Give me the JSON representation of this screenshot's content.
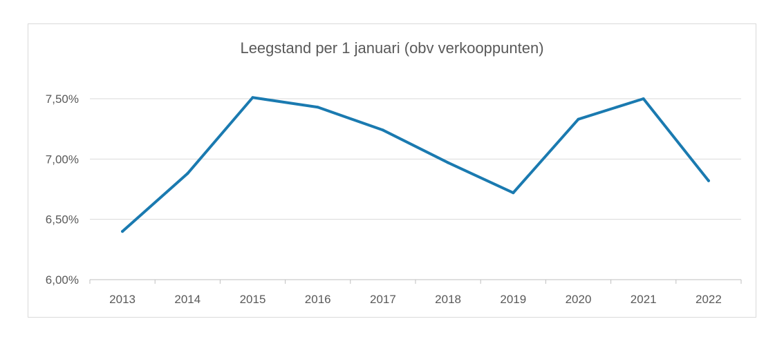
{
  "chart_data": {
    "type": "line",
    "title": "Leegstand per 1 januari (obv verkooppunten)",
    "xlabel": "",
    "ylabel": "",
    "categories": [
      "2013",
      "2014",
      "2015",
      "2016",
      "2017",
      "2018",
      "2019",
      "2020",
      "2021",
      "2022"
    ],
    "series": [
      {
        "values": [
          6.4,
          6.88,
          7.51,
          7.43,
          7.24,
          6.97,
          6.72,
          7.33,
          7.5,
          6.82
        ],
        "color": "#1a7ab0"
      }
    ],
    "ylim": [
      6.0,
      7.5
    ],
    "yticks": [
      6.0,
      6.5,
      7.0,
      7.5
    ],
    "ytick_labels": [
      "6,00%",
      "6,50%",
      "7,00%",
      "7,50%"
    ],
    "grid": true,
    "gridline_color": "#d9d9d9",
    "axis_text_color": "#595959",
    "legend": "none"
  }
}
